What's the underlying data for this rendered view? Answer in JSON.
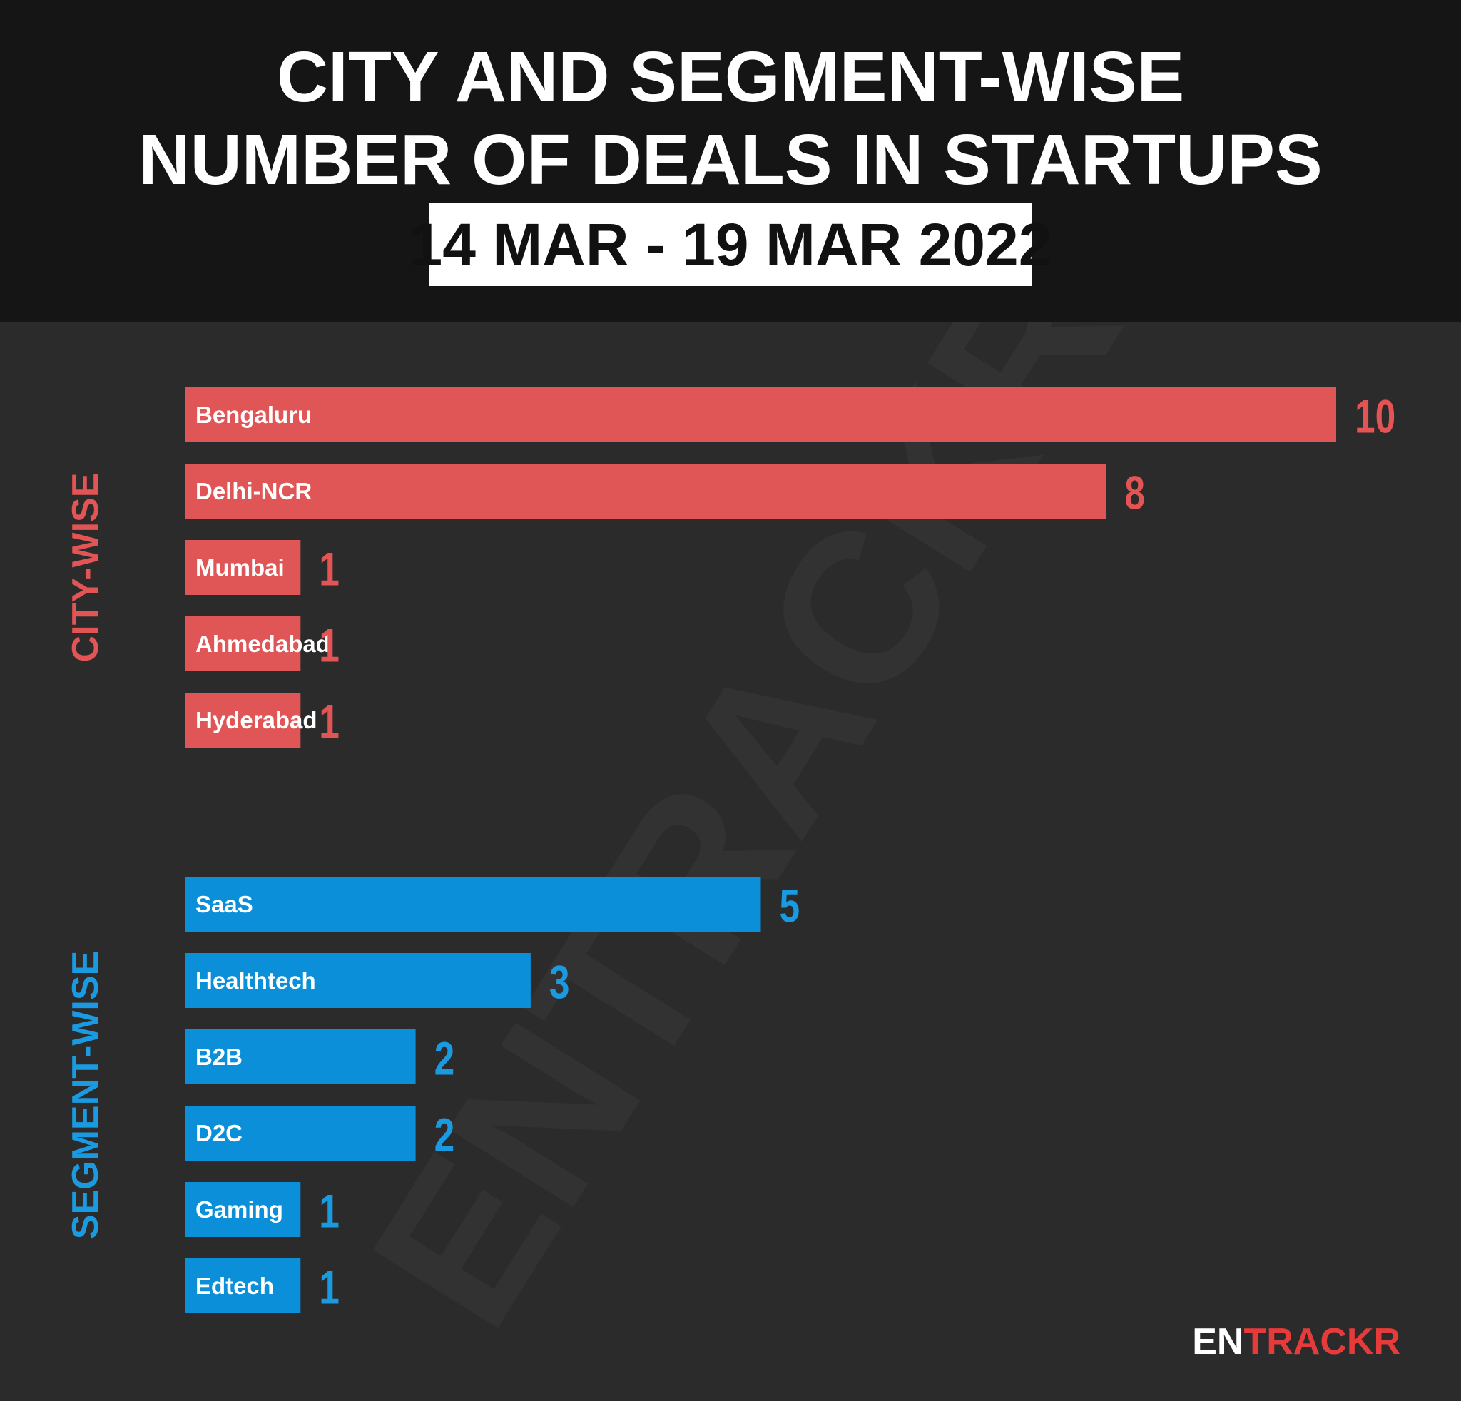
{
  "header": {
    "title_lines": [
      "CITY AND SEGMENT-WISE",
      "NUMBER OF DEALS IN STARTUPS"
    ],
    "date": "14 MAR - 19 MAR 2022"
  },
  "watermark": "ENTRACKR",
  "brand": {
    "part1": "EN",
    "part2": "TRACKR"
  },
  "chart_data": [
    {
      "type": "bar",
      "orientation": "horizontal",
      "title": "CITY-WISE",
      "categories": [
        "Bengaluru",
        "Delhi-NCR",
        "Mumbai",
        "Ahmedabad",
        "Hyderabad"
      ],
      "values": [
        10,
        8,
        1,
        1,
        1
      ],
      "color": "#e05555",
      "label_color": "#e35454",
      "xlim": [
        0,
        10
      ]
    },
    {
      "type": "bar",
      "orientation": "horizontal",
      "title": "SEGMENT-WISE",
      "categories": [
        "SaaS",
        "Healthtech",
        "B2B",
        "D2C",
        "Gaming",
        "Edtech"
      ],
      "values": [
        5,
        3,
        2,
        2,
        1,
        1
      ],
      "color": "#0a8fd8",
      "label_color": "#1a9ae0",
      "xlim": [
        0,
        10
      ]
    }
  ]
}
